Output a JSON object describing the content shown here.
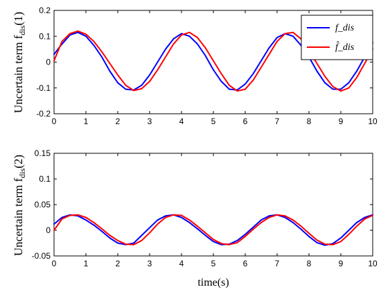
{
  "chart_data": [
    {
      "type": "line",
      "ylabel": "Uncertain term f",
      "ylabel_sub": "dis",
      "ylabel_suffix": "(1)",
      "xlabel": "",
      "xlim": [
        0,
        10
      ],
      "ylim": [
        -0.2,
        0.2
      ],
      "xticks": [
        "0",
        "1",
        "2",
        "3",
        "4",
        "5",
        "6",
        "7",
        "8",
        "9",
        "10"
      ],
      "yticks": [
        "-0.2",
        "-0.1",
        "0",
        "0.1",
        "0.2"
      ],
      "grid": false,
      "legend_position": "top-right",
      "x": [
        0,
        0.25,
        0.5,
        0.75,
        1,
        1.25,
        1.5,
        1.75,
        2,
        2.25,
        2.5,
        2.75,
        3,
        3.25,
        3.5,
        3.75,
        4,
        4.25,
        4.5,
        4.75,
        5,
        5.25,
        5.5,
        5.75,
        6,
        6.25,
        6.5,
        6.75,
        7,
        7.25,
        7.5,
        7.75,
        8,
        8.25,
        8.5,
        8.75,
        9,
        9.25,
        9.5,
        9.75,
        10
      ],
      "series": [
        {
          "name": "f_dis",
          "color": "#0000ff",
          "values": [
            0.03,
            0.07,
            0.105,
            0.115,
            0.1,
            0.065,
            0.02,
            -0.035,
            -0.08,
            -0.105,
            -0.108,
            -0.09,
            -0.05,
            0.0,
            0.05,
            0.09,
            0.11,
            0.1,
            0.07,
            0.025,
            -0.03,
            -0.075,
            -0.105,
            -0.108,
            -0.085,
            -0.045,
            0.005,
            0.055,
            0.095,
            0.11,
            0.1,
            0.065,
            0.02,
            -0.035,
            -0.08,
            -0.105,
            -0.105,
            -0.08,
            -0.035,
            0.02,
            0.075
          ]
        },
        {
          "name": "f̂_dis",
          "color": "#ff0000",
          "values": [
            0.005,
            0.08,
            0.11,
            0.12,
            0.108,
            0.08,
            0.04,
            -0.005,
            -0.05,
            -0.09,
            -0.11,
            -0.103,
            -0.075,
            -0.03,
            0.02,
            0.07,
            0.105,
            0.115,
            0.095,
            0.055,
            0.005,
            -0.045,
            -0.09,
            -0.112,
            -0.105,
            -0.07,
            -0.02,
            0.03,
            0.08,
            0.11,
            0.115,
            0.09,
            0.045,
            -0.005,
            -0.055,
            -0.095,
            -0.112,
            -0.1,
            -0.06,
            -0.005,
            0.05
          ]
        }
      ]
    },
    {
      "type": "line",
      "ylabel": "Uncertain term f",
      "ylabel_sub": "dis",
      "ylabel_suffix": "(2)",
      "xlabel": "time(s)",
      "xlim": [
        0,
        10
      ],
      "ylim": [
        -0.05,
        0.15
      ],
      "xticks": [
        "0",
        "1",
        "2",
        "3",
        "4",
        "5",
        "6",
        "7",
        "8",
        "9",
        "10"
      ],
      "yticks": [
        "-0.05",
        "0",
        "0.05",
        "0.1",
        "0.15"
      ],
      "grid": false,
      "x": [
        0,
        0.25,
        0.5,
        0.75,
        1,
        1.25,
        1.5,
        1.75,
        2,
        2.25,
        2.5,
        2.75,
        3,
        3.25,
        3.5,
        3.75,
        4,
        4.25,
        4.5,
        4.75,
        5,
        5.25,
        5.5,
        5.75,
        6,
        6.25,
        6.5,
        6.75,
        7,
        7.25,
        7.5,
        7.75,
        8,
        8.25,
        8.5,
        8.75,
        9,
        9.25,
        9.5,
        9.75,
        10
      ],
      "series": [
        {
          "name": "f_dis",
          "color": "#0000ff",
          "values": [
            0.012,
            0.025,
            0.03,
            0.028,
            0.02,
            0.01,
            -0.002,
            -0.015,
            -0.025,
            -0.028,
            -0.025,
            -0.01,
            0.005,
            0.02,
            0.028,
            0.03,
            0.025,
            0.015,
            0.003,
            -0.01,
            -0.022,
            -0.028,
            -0.027,
            -0.02,
            -0.008,
            0.006,
            0.02,
            0.028,
            0.03,
            0.025,
            0.015,
            0.002,
            -0.012,
            -0.024,
            -0.029,
            -0.026,
            -0.015,
            0.0,
            0.015,
            0.025,
            0.03
          ]
        },
        {
          "name": "f̂_dis",
          "color": "#ff0000",
          "values": [
            0.0,
            0.022,
            0.029,
            0.03,
            0.025,
            0.015,
            0.003,
            -0.01,
            -0.02,
            -0.027,
            -0.028,
            -0.02,
            -0.005,
            0.012,
            0.025,
            0.03,
            0.029,
            0.02,
            0.008,
            -0.005,
            -0.018,
            -0.026,
            -0.028,
            -0.024,
            -0.012,
            0.002,
            0.015,
            0.025,
            0.03,
            0.028,
            0.02,
            0.008,
            -0.006,
            -0.019,
            -0.027,
            -0.028,
            -0.022,
            -0.008,
            0.008,
            0.022,
            0.029
          ]
        }
      ]
    }
  ]
}
